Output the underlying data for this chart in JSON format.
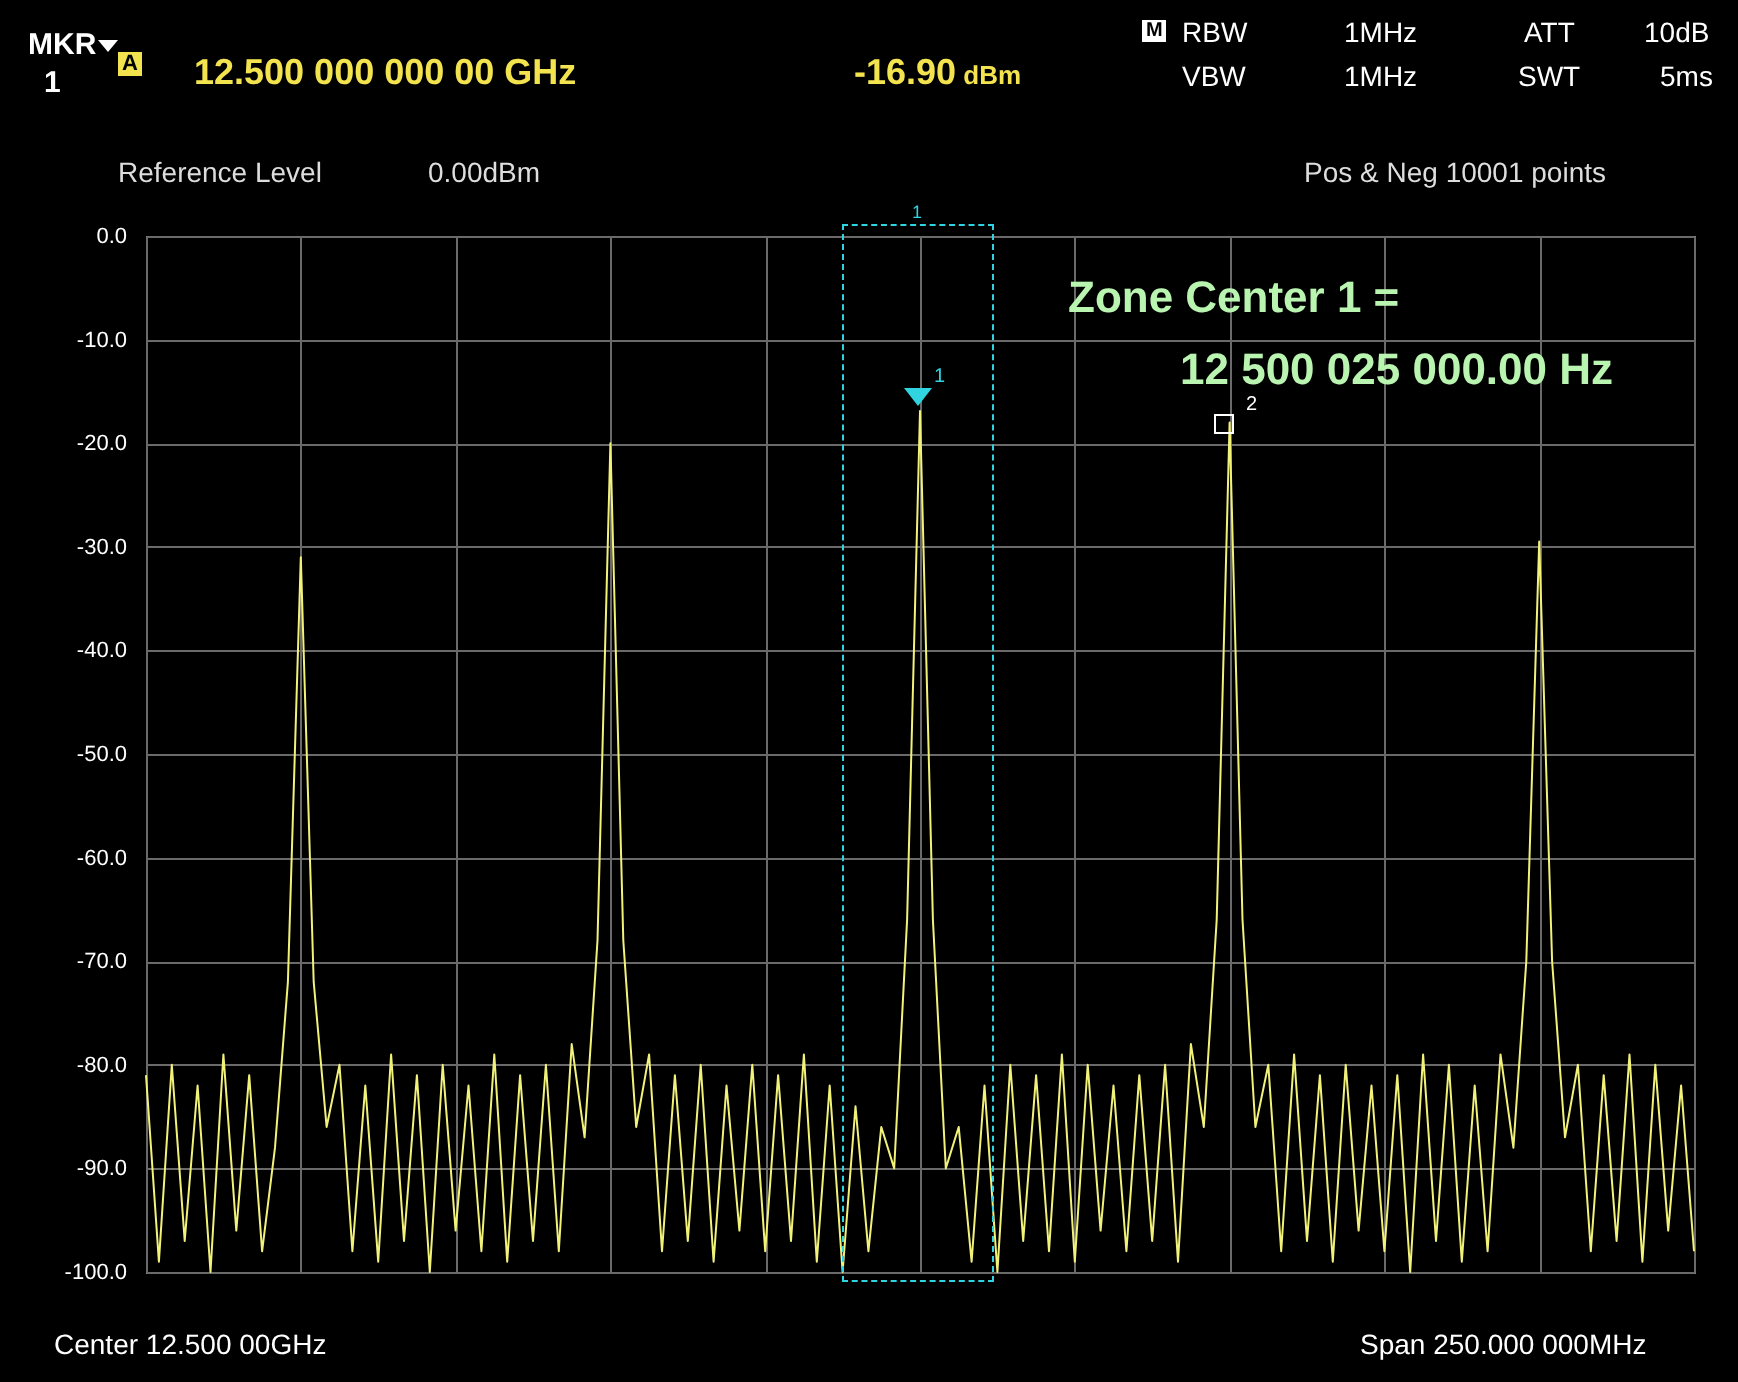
{
  "chart_data": {
    "type": "line",
    "categories": [
      null,
      null,
      null,
      null,
      null,
      null,
      null,
      null,
      null,
      null,
      null,
      null,
      null,
      null,
      null,
      null,
      null,
      null,
      null,
      null,
      null,
      null,
      null,
      null,
      null,
      null,
      null,
      null,
      null,
      null,
      null,
      null,
      null,
      null,
      null,
      null,
      null,
      null,
      null,
      null,
      null,
      null,
      null,
      null,
      null,
      null,
      null,
      null,
      null,
      null,
      null,
      null,
      null,
      null,
      null,
      null,
      null,
      null,
      null,
      null,
      null,
      null,
      null,
      null,
      null,
      null,
      null,
      null,
      null,
      null,
      null,
      null,
      null,
      null,
      null,
      null,
      null,
      null,
      null,
      null,
      null,
      null,
      null,
      null,
      null,
      null,
      null,
      null,
      null,
      null,
      null,
      null,
      null,
      null,
      null,
      null,
      null,
      null,
      null,
      null,
      null,
      null,
      null,
      null,
      null,
      null,
      null,
      null,
      null,
      null,
      null,
      null,
      null,
      null,
      null,
      null,
      null,
      null,
      null,
      null,
      null
    ],
    "series": [
      {
        "color": "#f2f27a",
        "values": [
          -81,
          -99,
          -80,
          -97,
          -82,
          -100,
          -79,
          -96,
          -81,
          -98,
          -88,
          -72,
          -31,
          -72,
          -86,
          -80,
          -98,
          -82,
          -99,
          -79,
          -97,
          -81,
          -100,
          -80,
          -96,
          -82,
          -98,
          -79,
          -99,
          -81,
          -97,
          -80,
          -98,
          -78,
          -87,
          -68,
          -20,
          -68,
          -86,
          -79,
          -98,
          -81,
          -97,
          -80,
          -99,
          -82,
          -96,
          -80,
          -98,
          -81,
          -97,
          -79,
          -99,
          -82,
          -100,
          -84,
          -98,
          -86,
          -90,
          -66,
          -16.9,
          -66,
          -90,
          -86,
          -99,
          -82,
          -100,
          -80,
          -97,
          -81,
          -98,
          -79,
          -99,
          -80,
          -96,
          -82,
          -98,
          -81,
          -97,
          -80,
          -99,
          -78,
          -86,
          -66,
          -18,
          -66,
          -86,
          -80,
          -98,
          -79,
          -97,
          -81,
          -99,
          -80,
          -96,
          -82,
          -98,
          -81,
          -100,
          -79,
          -97,
          -80,
          -99,
          -82,
          -98,
          -79,
          -88,
          -70,
          -29.5,
          -70,
          -87,
          -80,
          -98,
          -81,
          -97,
          -79,
          -99,
          -80,
          -96,
          -82,
          -98
        ]
      }
    ],
    "ylim": [
      -100,
      0
    ],
    "yticks": [
      {
        "value": 0,
        "label": "0.0"
      },
      {
        "value": -10,
        "label": "-10.0"
      },
      {
        "value": -20,
        "label": "-20.0"
      },
      {
        "value": -30,
        "label": "-30.0"
      },
      {
        "value": -40,
        "label": "-40.0"
      },
      {
        "value": -50,
        "label": "-50.0"
      },
      {
        "value": -60,
        "label": "-60.0"
      },
      {
        "value": -70,
        "label": "-70.0"
      },
      {
        "value": -80,
        "label": "-80.0"
      },
      {
        "value": -90,
        "label": "-90.0"
      },
      {
        "value": -100,
        "label": "-100.0"
      }
    ],
    "grid": true,
    "annotations": [
      "MKR",
      "1",
      "A",
      "12.500 000 000 00 GHz",
      "-16.90 dBm",
      "M",
      "RBW",
      "1MHz",
      "VBW",
      "1MHz",
      "ATT",
      "10dB",
      "SWT",
      "5ms",
      "Reference Level",
      "0.00dBm",
      "Pos & Neg  10001 points",
      "Zone Center 1 =",
      "12 500 025 000.00 Hz",
      "Center 12.500 00GHz",
      "Span 250.000 000MHz",
      "1",
      "2",
      "1"
    ]
  }
}
